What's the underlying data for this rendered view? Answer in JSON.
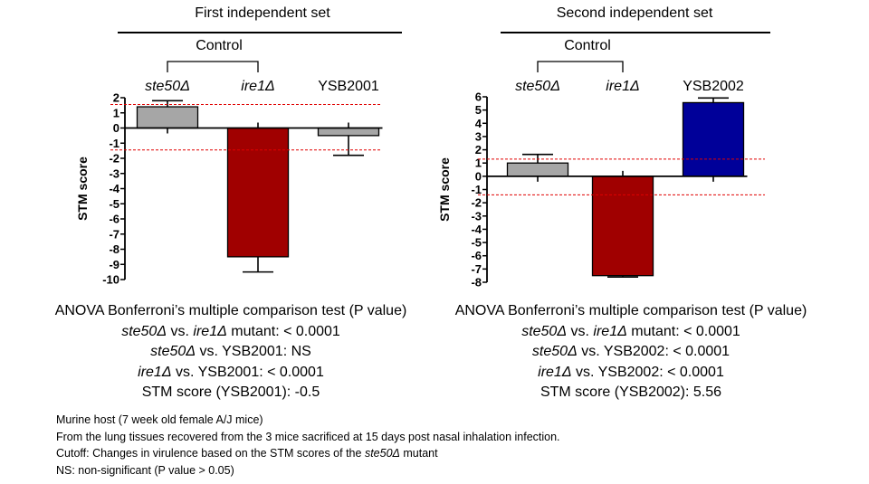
{
  "panels": [
    {
      "set_title": "First independent set",
      "control_label": "Control",
      "ylabel": "STM score",
      "stats": {
        "heading": "ANOVA Bonferroni’s multiple comparison test (P value)",
        "line1": {
          "a": "ste50Δ",
          "b": " vs. ",
          "c": "ire1Δ",
          "d": " mutant: < 0.0001"
        },
        "line2": {
          "a": "ste50Δ",
          "b": " vs. YSB2001: NS"
        },
        "line3": {
          "a": "ire1Δ",
          "b": " vs. YSB2001: < 0.0001"
        },
        "line4": "STM score (YSB2001): -0.5"
      }
    },
    {
      "set_title": "Second independent set",
      "control_label": "Control",
      "ylabel": "STM score",
      "stats": {
        "heading": "ANOVA Bonferroni’s multiple comparison test (P value)",
        "line1": {
          "a": "ste50Δ",
          "b": " vs. ",
          "c": "ire1Δ",
          "d": " mutant: < 0.0001"
        },
        "line2": {
          "a": "ste50Δ",
          "b": " vs. YSB2002:  < 0.0001"
        },
        "line3": {
          "a": "ire1Δ",
          "b": " vs. YSB2002: < 0.0001"
        },
        "line4": "STM score (YSB2002): 5.56"
      }
    }
  ],
  "chart_data": [
    {
      "type": "bar",
      "categories": [
        "ste50Δ",
        "ire1Δ",
        "YSB2001"
      ],
      "category_italic": [
        true,
        true,
        false
      ],
      "values": [
        1.4,
        -8.5,
        -0.5
      ],
      "error": [
        0.4,
        1.0,
        1.3
      ],
      "colors": [
        "#a6a6a6",
        "#a00000",
        "#a6a6a6"
      ],
      "ylabel": "STM score",
      "ylim": [
        -10,
        2
      ],
      "yticks": [
        2,
        1,
        0,
        -1,
        -2,
        -3,
        -4,
        -5,
        -6,
        -7,
        -8,
        -9,
        -10
      ],
      "cutoff": [
        1.55,
        -1.45
      ],
      "cutoff_color": "#e00000"
    },
    {
      "type": "bar",
      "categories": [
        "ste50Δ",
        "ire1Δ",
        "YSB2002"
      ],
      "category_italic": [
        true,
        true,
        false
      ],
      "values": [
        1.0,
        -7.5,
        5.56
      ],
      "error": [
        0.65,
        0.1,
        0.35
      ],
      "colors": [
        "#a6a6a6",
        "#a00000",
        "#000099"
      ],
      "ylabel": "STM score",
      "ylim": [
        -8,
        6
      ],
      "yticks": [
        6,
        5,
        4,
        3,
        2,
        1,
        0,
        -1,
        -2,
        -3,
        -4,
        -5,
        -6,
        -7,
        -8
      ],
      "cutoff": [
        1.3,
        -1.4
      ],
      "cutoff_color": "#e00000"
    }
  ],
  "footnotes": {
    "line1": "Murine host (7 week old female A/J mice)",
    "line2": "From  the lung tissues recovered from the 3 mice sacrificed at 15 days post nasal inhalation infection.",
    "line3": {
      "a": "Cutoff: Changes in virulence based on the STM scores of the ",
      "b": "ste50Δ",
      "c": " mutant"
    },
    "line4": "NS: non-significant (P value > 0.05)"
  }
}
